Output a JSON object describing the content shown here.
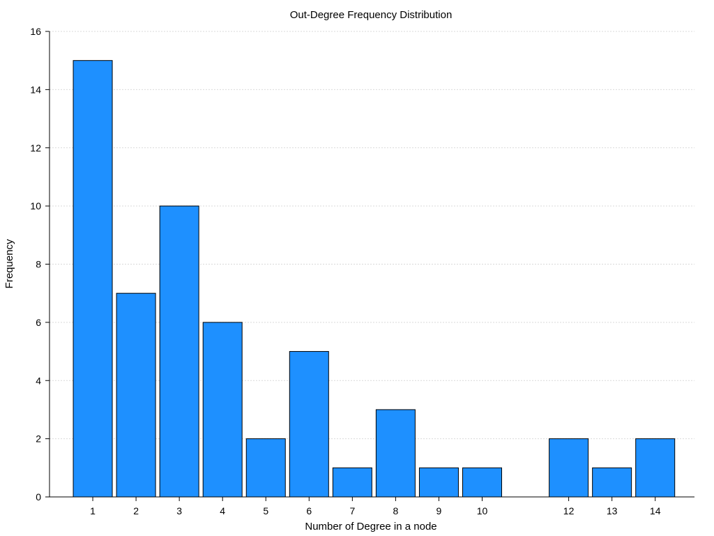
{
  "chart_data": {
    "type": "bar",
    "title": "Out-Degree Frequency Distribution",
    "xlabel": "Number of Degree in a node",
    "ylabel": "Frequency",
    "x": [
      1,
      2,
      3,
      4,
      5,
      6,
      7,
      8,
      9,
      10,
      12,
      13,
      14
    ],
    "values": [
      15,
      7,
      10,
      6,
      2,
      5,
      1,
      3,
      1,
      1,
      2,
      1,
      2
    ],
    "xticks": [
      1,
      2,
      3,
      4,
      5,
      6,
      7,
      8,
      9,
      10,
      12,
      13,
      14
    ],
    "xlim": [
      0,
      15
    ],
    "ylim": [
      0,
      16
    ],
    "yticks": [
      0,
      2,
      4,
      6,
      8,
      10,
      12,
      14,
      16
    ],
    "grid": "horizontal-dotted",
    "colors": {
      "bar_fill": "#1e90ff",
      "bar_stroke": "#000000",
      "grid": "#d9d9d9"
    }
  }
}
